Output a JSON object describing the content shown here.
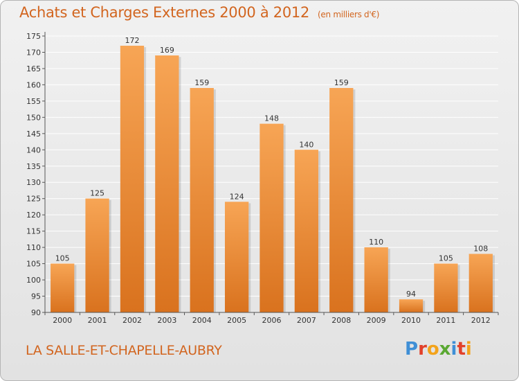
{
  "title": "Achats et Charges Externes 2000 à 2012",
  "unit_note": "(en milliers d'€)",
  "place_name": "LA SALLE-ET-CHAPELLE-AUBRY",
  "logo": {
    "text": "Proxiti",
    "letter_colors": [
      "#3f8fd6",
      "#e2412a",
      "#f3a31b",
      "#5aa832",
      "#3f8fd6",
      "#e2412a",
      "#f3a31b"
    ]
  },
  "colors": {
    "bar_light": "#f7a555",
    "bar_dark": "#d9721e",
    "title": "#d2651f",
    "grid": "#ffffff"
  },
  "chart_data": {
    "type": "bar",
    "title": "Achats et Charges Externes 2000 à 2012",
    "categories": [
      "2000",
      "2001",
      "2002",
      "2003",
      "2004",
      "2005",
      "2006",
      "2007",
      "2008",
      "2009",
      "2010",
      "2011",
      "2012"
    ],
    "values": [
      105,
      125,
      172,
      169,
      159,
      124,
      148,
      140,
      159,
      110,
      94,
      105,
      108
    ],
    "ylim": [
      90,
      175
    ],
    "yticks": [
      90,
      95,
      100,
      105,
      110,
      115,
      120,
      125,
      130,
      135,
      140,
      145,
      150,
      155,
      160,
      165,
      170,
      175
    ],
    "grid": true,
    "data_labels": true,
    "legend": "none"
  }
}
